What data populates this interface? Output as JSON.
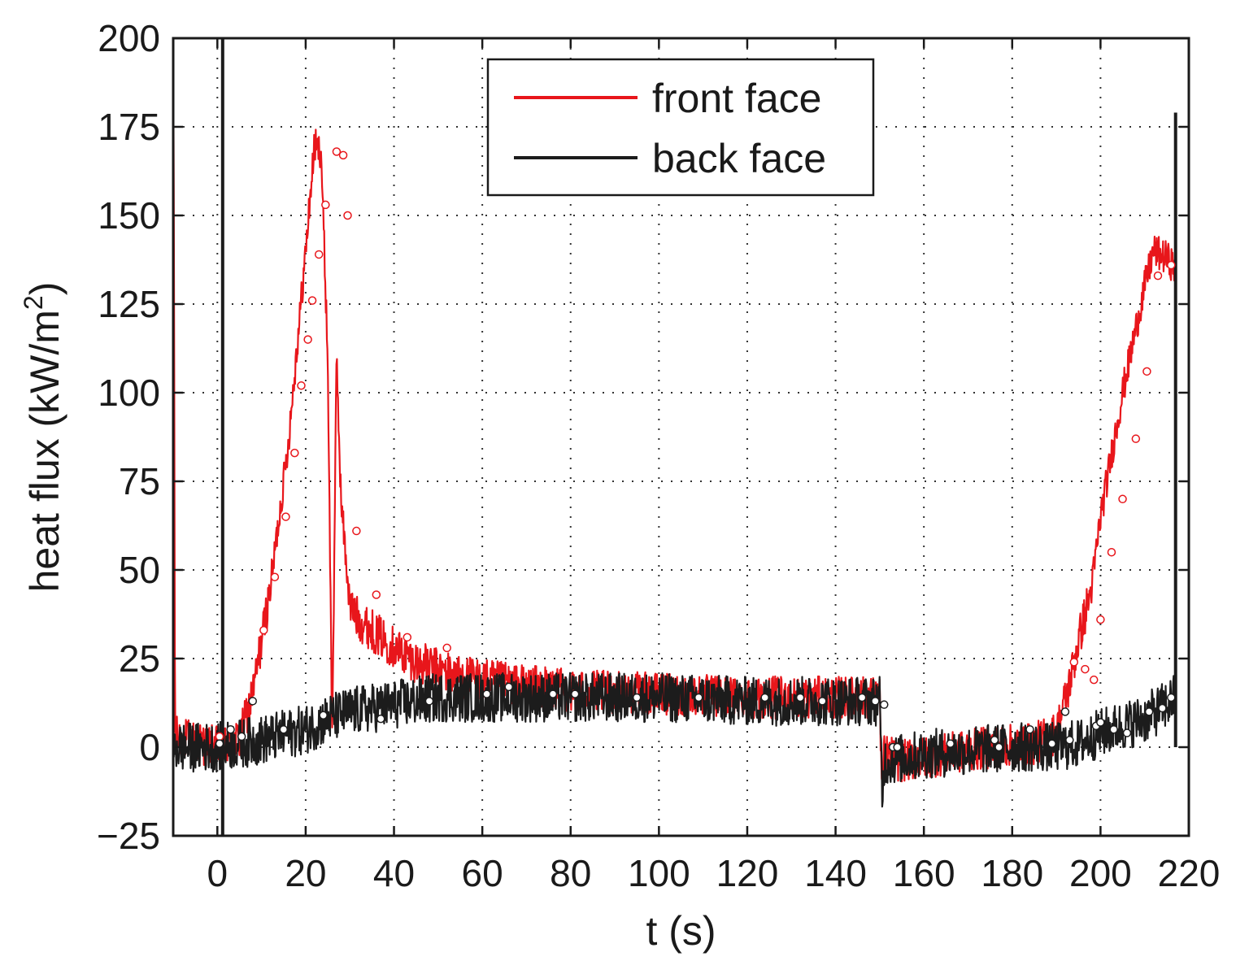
{
  "chart_data": {
    "type": "line",
    "title": "",
    "xlabel": "t (s)",
    "ylabel_main": "heat flux (kW/m",
    "ylabel_sup": "2",
    "ylabel_close": ")",
    "xlim": [
      -10,
      220
    ],
    "ylim": [
      -25,
      200
    ],
    "x_ticks": [
      0,
      20,
      40,
      60,
      80,
      100,
      120,
      140,
      160,
      180,
      200,
      220
    ],
    "y_ticks": [
      -25,
      0,
      25,
      50,
      75,
      100,
      125,
      150,
      175,
      200
    ],
    "x_tick_labels": [
      "0",
      "20",
      "40",
      "60",
      "80",
      "100",
      "120",
      "140",
      "160",
      "180",
      "200",
      "220"
    ],
    "y_tick_labels": [
      "−25",
      "0",
      "25",
      "50",
      "75",
      "100",
      "125",
      "150",
      "175",
      "200"
    ],
    "grid": true,
    "grid_style": "dotted",
    "legend_position": "top-center",
    "series": [
      {
        "name": "front face",
        "color": "#e8161b",
        "noise": 6,
        "x": [
          -10,
          -9.8,
          -9.6,
          0,
          5,
          8,
          12,
          16,
          20,
          22,
          23.5,
          25,
          26,
          27,
          28,
          30,
          32,
          34,
          38,
          45,
          55,
          65,
          80,
          100,
          120,
          140,
          150,
          150.6,
          151,
          155,
          165,
          175,
          185,
          190,
          193,
          195,
          198,
          200,
          205,
          210,
          212,
          215,
          217
        ],
        "y": [
          200,
          130,
          3,
          0,
          2,
          15,
          45,
          85,
          140,
          170,
          168,
          110,
          3,
          110,
          70,
          40,
          36,
          34,
          30,
          24,
          20,
          18,
          16,
          15,
          14,
          14,
          14,
          -15,
          -2,
          -4,
          -2,
          0,
          1,
          4,
          18,
          30,
          45,
          65,
          100,
          130,
          140,
          138,
          135
        ]
      },
      {
        "name": "back face",
        "color": "#1c1c1c",
        "noise": 7,
        "x": [
          -10,
          0,
          10,
          20,
          25,
          30,
          40,
          50,
          60,
          80,
          100,
          120,
          140,
          150,
          150.6,
          151,
          160,
          170,
          180,
          190,
          195,
          200,
          205,
          210,
          215,
          217
        ],
        "y": [
          0,
          0,
          2,
          5,
          8,
          10,
          12,
          14,
          14,
          14,
          14,
          13,
          13,
          13,
          -15,
          -4,
          -2,
          -1,
          0,
          0,
          1,
          4,
          6,
          8,
          12,
          14
        ],
        "spikes": [
          {
            "x": 1.2,
            "y_from": -25,
            "y_to": 200
          },
          {
            "x": 217,
            "y_from": 0,
            "y_to": 179
          }
        ]
      }
    ],
    "markers": {
      "front face": {
        "x": [
          0.5,
          10.5,
          13,
          15.5,
          17.5,
          19,
          20.5,
          21.5,
          23,
          24.5,
          27,
          28.5,
          29.5,
          31.5,
          36,
          43,
          52,
          194,
          196.5,
          198.5,
          200,
          202.5,
          205,
          208,
          210.5,
          213,
          216
        ],
        "y": [
          3,
          33,
          48,
          65,
          83,
          102,
          115,
          126,
          139,
          153,
          168,
          167,
          150,
          61,
          43,
          31,
          28,
          24,
          22,
          19,
          36,
          55,
          70,
          87,
          106,
          133,
          136
        ]
      },
      "back face": {
        "x": [
          0.5,
          3,
          5.5,
          8,
          15,
          24,
          37,
          48,
          61,
          66,
          76,
          81,
          95,
          109,
          124,
          132,
          137,
          146,
          149,
          151,
          153,
          154,
          166,
          176,
          177,
          184,
          189,
          192,
          193,
          199,
          200,
          203,
          206,
          211,
          214,
          216
        ],
        "y": [
          1,
          5,
          3,
          13,
          5,
          9,
          8,
          13,
          15,
          17,
          15,
          15,
          14,
          14,
          14,
          14,
          13,
          14,
          13,
          12,
          0,
          0,
          1,
          2,
          0,
          5,
          1,
          10,
          2,
          6,
          7,
          5,
          4,
          10,
          11,
          14
        ]
      }
    }
  }
}
